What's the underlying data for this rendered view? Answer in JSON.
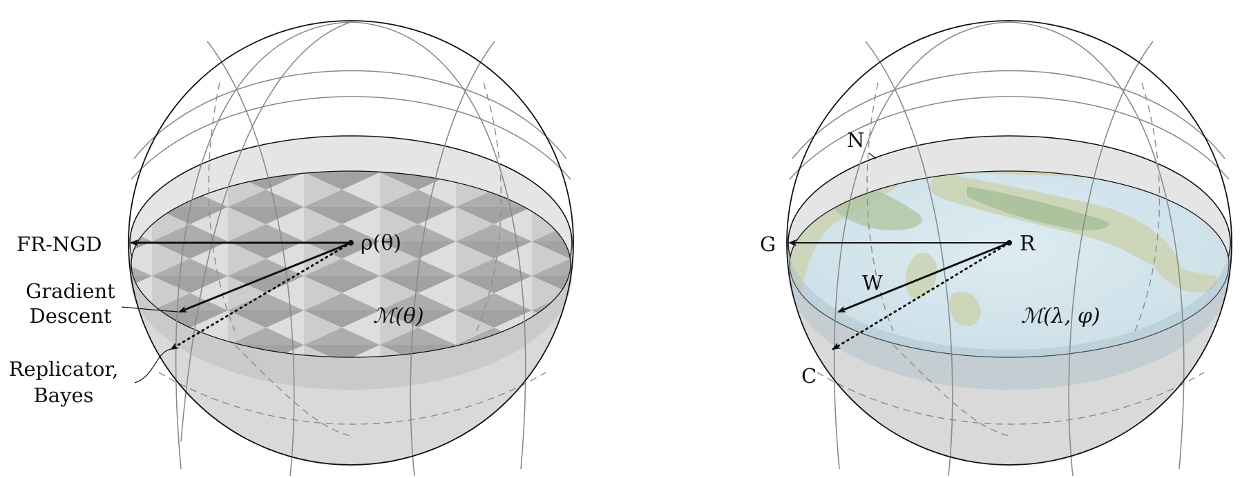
{
  "left_diagram": {
    "labels": {
      "point": "ρ(θ)",
      "manifold": "ℳ(θ)",
      "arrow_horizontal": "FR-NGD",
      "arrow_gradient_line1": "Gradient",
      "arrow_gradient_line2": "Descent",
      "arrow_dotted_line1": "Replicator,",
      "arrow_dotted_line2": "Bayes"
    }
  },
  "right_diagram": {
    "labels": {
      "point": "R",
      "manifold": "ℳ(λ, φ)",
      "arrow_horizontal": "G",
      "arrow_solid": "W",
      "arrow_dotted": "C",
      "north": "N"
    }
  },
  "colors": {
    "outline": "#111111",
    "meridian": "#8a8a8a",
    "disk_light": "#e6e6e6",
    "disk_shadow": "#bcbcbc",
    "triangle_dark": "#a8a8a8",
    "triangle_light": "#e8e8e8",
    "sea": "#cfe3ec",
    "land": "#c9d3b5",
    "forest": "#9fb98f"
  }
}
